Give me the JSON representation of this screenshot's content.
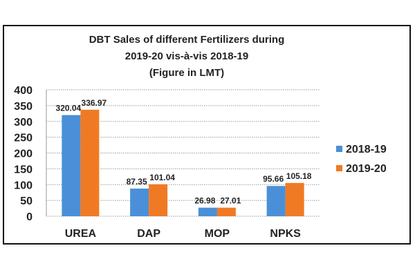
{
  "chart_data": {
    "type": "bar",
    "title_lines": [
      "DBT Sales of different Fertilizers during",
      "2019-20 vis-à-vis 2018-19",
      "(Figure in LMT)"
    ],
    "categories": [
      "UREA",
      "DAP",
      "MOP",
      "NPKS"
    ],
    "series": [
      {
        "name": "2018-19",
        "values": [
          320.04,
          87.35,
          26.98,
          95.66
        ],
        "labels": [
          "320.04",
          "87.35",
          "26.98",
          "95.66"
        ],
        "color": "#4a8fd8"
      },
      {
        "name": "2019-20",
        "values": [
          336.97,
          101.04,
          27.01,
          105.18
        ],
        "labels": [
          "336.97",
          "101.04",
          "27.01",
          "105.18"
        ],
        "color": "#f07a24"
      }
    ],
    "yticks": [
      0,
      50,
      100,
      150,
      200,
      250,
      300,
      350,
      400
    ],
    "ylim": [
      0,
      400
    ],
    "grid": true,
    "legend": "right"
  }
}
